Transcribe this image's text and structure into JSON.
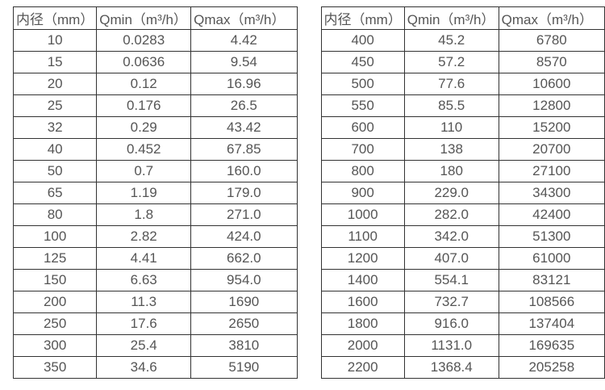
{
  "page": {
    "background_color": "#ffffff",
    "border_color": "#333333",
    "text_color": "#555555"
  },
  "tables": [
    {
      "name": "flow-table-small-diameters",
      "headers": [
        "内径（mm）",
        "Qmin（m³/h）",
        "Qmax（m³/h）"
      ],
      "rows": [
        [
          "10",
          "0.0283",
          "4.42"
        ],
        [
          "15",
          "0.0636",
          "9.54"
        ],
        [
          "20",
          "0.12",
          "16.96"
        ],
        [
          "25",
          "0.176",
          "26.5"
        ],
        [
          "32",
          "0.29",
          "43.42"
        ],
        [
          "40",
          "0.452",
          "67.85"
        ],
        [
          "50",
          "0.7",
          "160.0"
        ],
        [
          "65",
          "1.19",
          "179.0"
        ],
        [
          "80",
          "1.8",
          "271.0"
        ],
        [
          "100",
          "2.82",
          "424.0"
        ],
        [
          "125",
          "4.41",
          "662.0"
        ],
        [
          "150",
          "6.63",
          "954.0"
        ],
        [
          "200",
          "11.3",
          "1690"
        ],
        [
          "250",
          "17.6",
          "2650"
        ],
        [
          "300",
          "25.4",
          "3810"
        ],
        [
          "350",
          "34.6",
          "5190"
        ]
      ]
    },
    {
      "name": "flow-table-large-diameters",
      "headers": [
        "内径（mm）",
        "Qmin（m³/h）",
        "Qmax（m³/h）"
      ],
      "rows": [
        [
          "400",
          "45.2",
          "6780"
        ],
        [
          "450",
          "57.2",
          "8570"
        ],
        [
          "500",
          "77.6",
          "10600"
        ],
        [
          "550",
          "85.5",
          "12800"
        ],
        [
          "600",
          "110",
          "15200"
        ],
        [
          "700",
          "138",
          "20700"
        ],
        [
          "800",
          "180",
          "27100"
        ],
        [
          "900",
          "229.0",
          "34300"
        ],
        [
          "1000",
          "282.0",
          "42400"
        ],
        [
          "1100",
          "342.0",
          "51300"
        ],
        [
          "1200",
          "407.0",
          "61000"
        ],
        [
          "1400",
          "554.1",
          "83121"
        ],
        [
          "1600",
          "732.7",
          "108566"
        ],
        [
          "1800",
          "916.0",
          "137404"
        ],
        [
          "2000",
          "1131.0",
          "169635"
        ],
        [
          "2200",
          "1368.4",
          "205258"
        ]
      ]
    }
  ]
}
